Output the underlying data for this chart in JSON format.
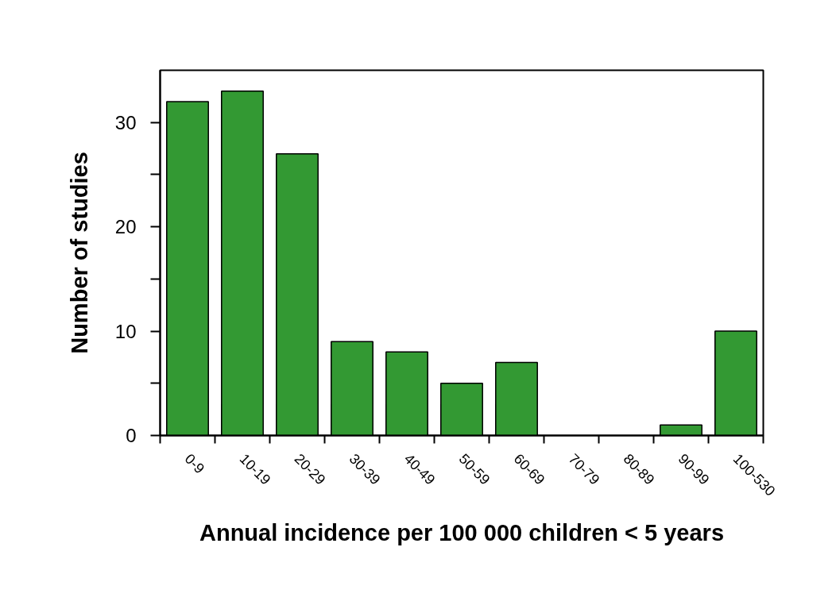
{
  "chart_data": {
    "type": "bar",
    "xlabel": "Annual incidence per 100 000 children < 5 years",
    "ylabel": "Number of studies",
    "categories": [
      "0-9",
      "10-19",
      "20-29",
      "30-39",
      "40-49",
      "50-59",
      "60-69",
      "70-79",
      "80-89",
      "90-99",
      "100-530"
    ],
    "values": [
      32,
      33,
      27,
      9,
      8,
      5,
      7,
      0,
      0,
      1,
      10
    ],
    "color": "#339933",
    "ylim": [
      0,
      35
    ],
    "yticks": [
      0,
      {
        "value": 5,
        "label": null
      },
      10,
      {
        "value": 15,
        "label": null
      },
      20,
      {
        "value": 25,
        "label": null
      },
      30
    ],
    "grid": false
  }
}
